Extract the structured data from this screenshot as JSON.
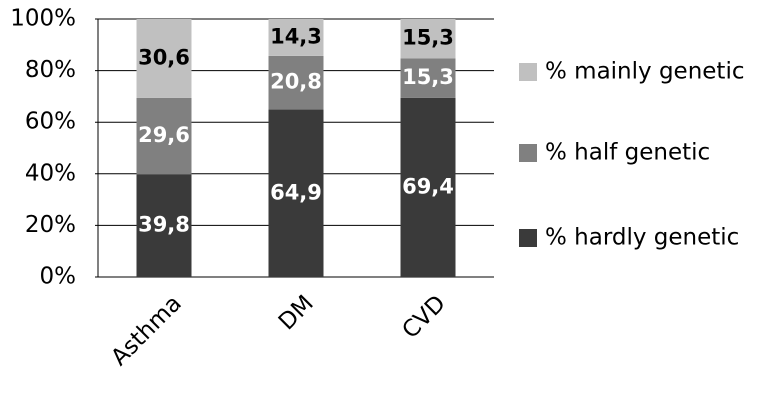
{
  "chart_data": {
    "type": "stacked_bar",
    "categories": [
      "Asthma",
      "DM",
      "CVD"
    ],
    "series": [
      {
        "name": "% hardly genetic",
        "color": "#3a3a3a",
        "label_color": "#ffffff",
        "values": [
          39.8,
          64.9,
          69.4
        ],
        "value_labels": [
          "39,8",
          "64,9",
          "69,4"
        ]
      },
      {
        "name": "% half genetic",
        "color": "#808080",
        "label_color": "#ffffff",
        "values": [
          29.6,
          20.8,
          15.3
        ],
        "value_labels": [
          "29,6",
          "20,8",
          "15,3"
        ]
      },
      {
        "name": "% mainly genetic",
        "color": "#c0c0c0",
        "label_color": "#000000",
        "values": [
          30.6,
          14.3,
          15.3
        ],
        "value_labels": [
          "30,6",
          "14,3",
          "15,3"
        ]
      }
    ],
    "ylim": [
      0,
      100
    ],
    "yticks": [
      {
        "value": 0,
        "label": "0%"
      },
      {
        "value": 20,
        "label": "20%"
      },
      {
        "value": 40,
        "label": "40%"
      },
      {
        "value": 60,
        "label": "60%"
      },
      {
        "value": 80,
        "label": "80%"
      },
      {
        "value": 100,
        "label": "100%"
      }
    ],
    "grid": true,
    "legend": "right"
  }
}
